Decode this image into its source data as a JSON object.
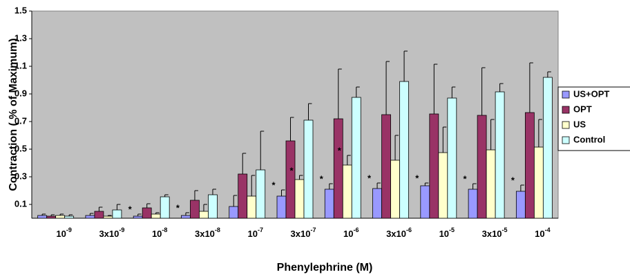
{
  "chart_data": {
    "type": "bar",
    "y_label": "Contraction ( % of Maximum)",
    "x_label": "Phenylephrine (M)",
    "categories": [
      {
        "base": "10",
        "exp": "-9"
      },
      {
        "base": "3x10",
        "exp": "-9"
      },
      {
        "base": "10",
        "exp": "-8"
      },
      {
        "base": "3x10",
        "exp": "-8"
      },
      {
        "base": "10",
        "exp": "-7"
      },
      {
        "base": "3x10",
        "exp": "-7"
      },
      {
        "base": "10",
        "exp": "-6"
      },
      {
        "base": "3x10",
        "exp": "-6"
      },
      {
        "base": "10",
        "exp": "-5"
      },
      {
        "base": "3x10",
        "exp": "-5"
      },
      {
        "base": "10",
        "exp": "-4"
      }
    ],
    "series": [
      {
        "name": "US+OPT",
        "color": "#9999ff",
        "values": [
          0.02,
          0.02,
          0.015,
          0.02,
          0.085,
          0.16,
          0.21,
          0.215,
          0.235,
          0.21,
          0.195
        ],
        "errors": [
          0.01,
          0.015,
          0.015,
          0.02,
          0.08,
          0.045,
          0.04,
          0.04,
          0.02,
          0.04,
          0.045
        ]
      },
      {
        "name": "OPT",
        "color": "#993366",
        "values": [
          0.015,
          0.05,
          0.075,
          0.13,
          0.32,
          0.56,
          0.72,
          0.75,
          0.755,
          0.745,
          0.765
        ],
        "errors": [
          0.01,
          0.03,
          0.03,
          0.07,
          0.15,
          0.17,
          0.36,
          0.385,
          0.36,
          0.345,
          0.36
        ]
      },
      {
        "name": "US",
        "color": "#ffffcc",
        "values": [
          0.02,
          0.015,
          0.03,
          0.05,
          0.16,
          0.28,
          0.385,
          0.42,
          0.475,
          0.495,
          0.515
        ],
        "errors": [
          0.01,
          0.005,
          0.01,
          0.05,
          0.15,
          0.03,
          0.07,
          0.18,
          0.185,
          0.22,
          0.2
        ]
      },
      {
        "name": "Control",
        "color": "#ccffff",
        "values": [
          0.015,
          0.06,
          0.155,
          0.17,
          0.35,
          0.71,
          0.875,
          0.99,
          0.87,
          0.915,
          1.02
        ],
        "errors": [
          0.01,
          0.04,
          0.015,
          0.04,
          0.28,
          0.12,
          0.075,
          0.22,
          0.08,
          0.06,
          0.04
        ]
      }
    ],
    "annotations": [
      {
        "text": "*",
        "series": 0,
        "category": 2
      },
      {
        "text": "*",
        "series": 0,
        "category": 3
      },
      {
        "text": "*",
        "series": 0,
        "category": 5
      },
      {
        "text": "*",
        "series": 0,
        "category": 6
      },
      {
        "text": "*",
        "series": 0,
        "category": 7
      },
      {
        "text": "*",
        "series": 0,
        "category": 8
      },
      {
        "text": "*",
        "series": 0,
        "category": 9
      },
      {
        "text": "*",
        "series": 0,
        "category": 10
      },
      {
        "text": "*",
        "series": 2,
        "category": 5
      },
      {
        "text": "*",
        "series": 2,
        "category": 6
      }
    ],
    "ylim": [
      0,
      1.5
    ],
    "yticks": [
      0.1,
      0.3,
      0.5,
      0.7,
      0.9,
      1.1,
      1.3,
      1.5
    ],
    "background": "#c0c0c0",
    "legend": "right"
  }
}
